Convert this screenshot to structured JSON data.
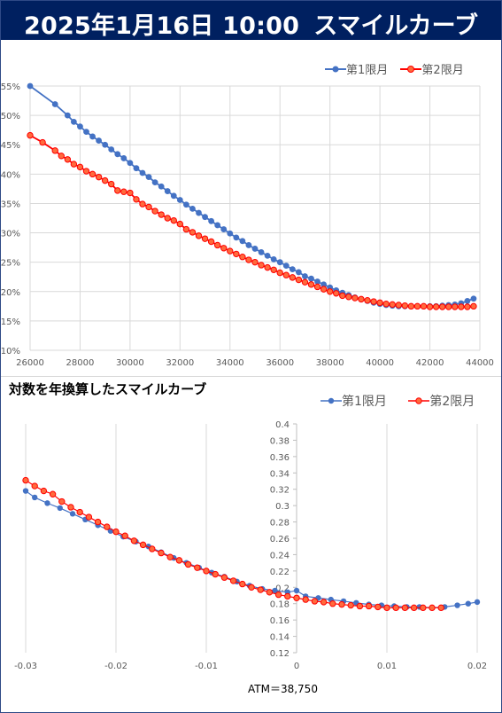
{
  "header": {
    "date": "2025年1月16日 10:00",
    "title": "スマイルカーブ"
  },
  "colors": {
    "series1": "#4472C4",
    "series2": "#FF0000",
    "series2_fill": "#FF6A3D",
    "header_bg": "#002060",
    "grid": "#d9d9d9",
    "tick_text": "#595959"
  },
  "chart2_title": "対数を年換算したスマイルカーブ",
  "atm_label": "ATM＝38,750",
  "chart_data": [
    {
      "type": "line",
      "title": "",
      "xlabel": "",
      "ylabel": "",
      "xlim": [
        26000,
        44000
      ],
      "ylim": [
        0.1,
        0.55
      ],
      "x_ticks": [
        "26000",
        "28000",
        "30000",
        "32000",
        "34000",
        "36000",
        "38000",
        "40000",
        "42000",
        "44000"
      ],
      "y_ticks": [
        "10%",
        "15%",
        "20%",
        "25%",
        "30%",
        "35%",
        "40%",
        "45%",
        "50%",
        "55%"
      ],
      "legend": "top-right",
      "grid": true,
      "series": [
        {
          "name": "第1限月",
          "color": "#4472C4",
          "x": [
            26000,
            27000,
            27500,
            27750,
            28000,
            28250,
            28500,
            28750,
            29000,
            29250,
            29500,
            29750,
            30000,
            30250,
            30500,
            30750,
            31000,
            31250,
            31500,
            31750,
            32000,
            32250,
            32500,
            32750,
            33000,
            33250,
            33500,
            33750,
            34000,
            34250,
            34500,
            34750,
            35000,
            35250,
            35500,
            35750,
            36000,
            36250,
            36500,
            36750,
            37000,
            37250,
            37500,
            37750,
            38000,
            38250,
            38500,
            38750,
            39000,
            39250,
            39500,
            39750,
            40000,
            40250,
            40500,
            40750,
            41000,
            41250,
            41500,
            41750,
            42000,
            42250,
            42500,
            42750,
            43000,
            43250,
            43500,
            43750
          ],
          "y": [
            0.55,
            0.519,
            0.5,
            0.489,
            0.481,
            0.472,
            0.464,
            0.457,
            0.45,
            0.442,
            0.434,
            0.427,
            0.419,
            0.41,
            0.402,
            0.395,
            0.386,
            0.379,
            0.371,
            0.363,
            0.356,
            0.348,
            0.341,
            0.334,
            0.327,
            0.32,
            0.313,
            0.306,
            0.299,
            0.292,
            0.286,
            0.279,
            0.273,
            0.267,
            0.261,
            0.255,
            0.25,
            0.244,
            0.238,
            0.233,
            0.226,
            0.222,
            0.217,
            0.212,
            0.207,
            0.202,
            0.198,
            0.194,
            0.19,
            0.187,
            0.184,
            0.181,
            0.179,
            0.177,
            0.176,
            0.175,
            0.175,
            0.175,
            0.175,
            0.175,
            0.175,
            0.175,
            0.176,
            0.177,
            0.178,
            0.18,
            0.184,
            0.188
          ]
        },
        {
          "name": "第2限月",
          "color": "#FF0000",
          "x": [
            26000,
            26500,
            27000,
            27250,
            27500,
            27750,
            28000,
            28250,
            28500,
            28750,
            29000,
            29250,
            29500,
            29750,
            30000,
            30250,
            30500,
            30750,
            31000,
            31250,
            31500,
            31750,
            32000,
            32250,
            32500,
            32750,
            33000,
            33250,
            33500,
            33750,
            34000,
            34250,
            34500,
            34750,
            35000,
            35250,
            35500,
            35750,
            36000,
            36250,
            36500,
            36750,
            37000,
            37250,
            37500,
            37750,
            38000,
            38250,
            38500,
            38750,
            39000,
            39250,
            39500,
            39750,
            40000,
            40250,
            40500,
            40750,
            41000,
            41250,
            41500,
            41750,
            42000,
            42250,
            42500,
            42750,
            43000,
            43250,
            43500,
            43750
          ],
          "y": [
            0.466,
            0.454,
            0.44,
            0.431,
            0.425,
            0.417,
            0.412,
            0.405,
            0.4,
            0.395,
            0.389,
            0.383,
            0.372,
            0.37,
            0.368,
            0.357,
            0.349,
            0.344,
            0.337,
            0.331,
            0.325,
            0.321,
            0.315,
            0.306,
            0.301,
            0.295,
            0.29,
            0.285,
            0.279,
            0.274,
            0.269,
            0.264,
            0.259,
            0.254,
            0.25,
            0.245,
            0.241,
            0.237,
            0.232,
            0.228,
            0.224,
            0.22,
            0.216,
            0.212,
            0.208,
            0.204,
            0.2,
            0.197,
            0.193,
            0.191,
            0.189,
            0.187,
            0.185,
            0.183,
            0.181,
            0.179,
            0.178,
            0.177,
            0.176,
            0.175,
            0.175,
            0.175,
            0.174,
            0.174,
            0.174,
            0.174,
            0.174,
            0.174,
            0.174,
            0.175
          ]
        }
      ]
    },
    {
      "type": "scatter",
      "title": "対数を年換算したスマイルカーブ",
      "xlabel": "ATM＝38,750",
      "ylabel": "",
      "xlim": [
        -0.03,
        0.02
      ],
      "ylim": [
        0.12,
        0.4
      ],
      "x_ticks": [
        "-0.03",
        "-0.02",
        "-0.01",
        "0",
        "0.01",
        "0.02"
      ],
      "y_ticks": [
        "0.12",
        "0.14",
        "0.16",
        "0.18",
        "0.2",
        "0.22",
        "0.24",
        "0.26",
        "0.28",
        "0.3",
        "0.32",
        "0.34",
        "0.36",
        "0.38",
        "0.4"
      ],
      "legend": "top-right",
      "grid": true,
      "series": [
        {
          "name": "第1限月",
          "color": "#4472C4",
          "x": [
            -0.03,
            -0.029,
            -0.0276,
            -0.0262,
            -0.0248,
            -0.0234,
            -0.022,
            -0.0206,
            -0.0192,
            -0.0178,
            -0.0164,
            -0.015,
            -0.0136,
            -0.0122,
            -0.0108,
            -0.0094,
            -0.008,
            -0.0066,
            -0.0052,
            -0.0038,
            -0.0024,
            -0.001,
            0.0,
            0.001,
            0.0024,
            0.0038,
            0.0052,
            0.0066,
            0.008,
            0.0094,
            0.0108,
            0.0122,
            0.0136,
            0.015,
            0.0164,
            0.0178,
            0.019,
            0.02
          ],
          "y": [
            0.318,
            0.31,
            0.303,
            0.297,
            0.29,
            0.283,
            0.276,
            0.269,
            0.262,
            0.256,
            0.25,
            0.243,
            0.236,
            0.23,
            0.224,
            0.218,
            0.213,
            0.207,
            0.202,
            0.198,
            0.196,
            0.194,
            0.196,
            0.189,
            0.187,
            0.185,
            0.183,
            0.181,
            0.179,
            0.178,
            0.177,
            0.176,
            0.176,
            0.175,
            0.176,
            0.178,
            0.18,
            0.182
          ]
        },
        {
          "name": "第2限月",
          "color": "#FF0000",
          "x": [
            -0.03,
            -0.029,
            -0.028,
            -0.027,
            -0.026,
            -0.025,
            -0.024,
            -0.023,
            -0.022,
            -0.021,
            -0.02,
            -0.019,
            -0.018,
            -0.017,
            -0.016,
            -0.015,
            -0.014,
            -0.013,
            -0.012,
            -0.011,
            -0.01,
            -0.009,
            -0.008,
            -0.007,
            -0.006,
            -0.005,
            -0.004,
            -0.003,
            -0.002,
            -0.001,
            0.0,
            0.001,
            0.002,
            0.003,
            0.004,
            0.005,
            0.006,
            0.007,
            0.008,
            0.009,
            0.01,
            0.011,
            0.012,
            0.013,
            0.014,
            0.015,
            0.016
          ],
          "y": [
            0.331,
            0.324,
            0.318,
            0.314,
            0.305,
            0.298,
            0.292,
            0.286,
            0.28,
            0.274,
            0.268,
            0.263,
            0.257,
            0.252,
            0.247,
            0.242,
            0.237,
            0.233,
            0.228,
            0.224,
            0.22,
            0.216,
            0.212,
            0.208,
            0.204,
            0.2,
            0.197,
            0.194,
            0.191,
            0.189,
            0.187,
            0.185,
            0.183,
            0.182,
            0.18,
            0.179,
            0.178,
            0.177,
            0.177,
            0.176,
            0.175,
            0.175,
            0.175,
            0.175,
            0.175,
            0.175,
            0.175
          ]
        }
      ]
    }
  ]
}
